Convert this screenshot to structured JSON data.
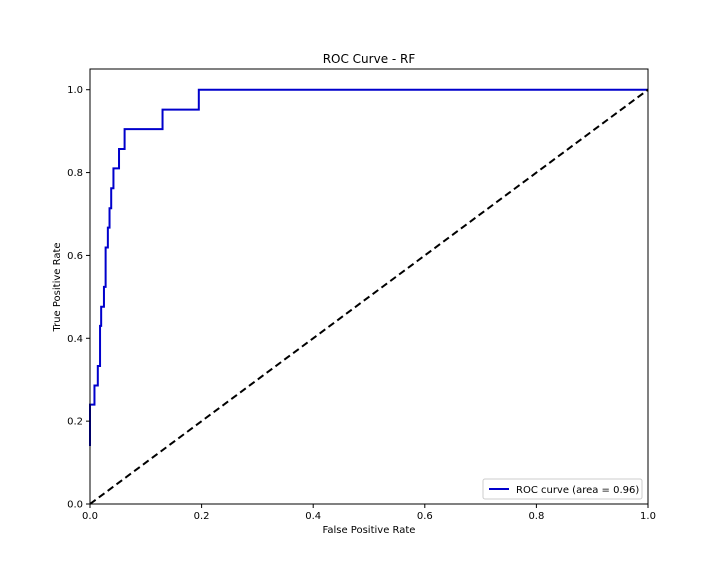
{
  "chart_data": {
    "type": "line",
    "title": "ROC Curve - RF",
    "xlabel": "False Positive Rate",
    "ylabel": "True Positive Rate",
    "xlim": [
      0.0,
      1.0
    ],
    "ylim": [
      0.0,
      1.05
    ],
    "xticks": [
      "0.0",
      "0.2",
      "0.4",
      "0.6",
      "0.8",
      "1.0"
    ],
    "yticks": [
      "0.0",
      "0.2",
      "0.4",
      "0.6",
      "0.8",
      "1.0"
    ],
    "grid": false,
    "legend_position": "lower-right",
    "series": [
      {
        "name": "ROC curve (area = 0.96)",
        "color": "#0000cc",
        "style": "solid",
        "x": [
          0.0,
          0.0,
          0.008,
          0.008,
          0.014,
          0.014,
          0.018,
          0.018,
          0.02,
          0.02,
          0.025,
          0.025,
          0.028,
          0.028,
          0.032,
          0.032,
          0.035,
          0.035,
          0.038,
          0.038,
          0.042,
          0.042,
          0.052,
          0.052,
          0.062,
          0.062,
          0.13,
          0.13,
          0.195,
          0.195,
          1.0
        ],
        "y": [
          0.14,
          0.24,
          0.24,
          0.286,
          0.286,
          0.333,
          0.333,
          0.43,
          0.43,
          0.476,
          0.476,
          0.524,
          0.524,
          0.619,
          0.619,
          0.667,
          0.667,
          0.714,
          0.714,
          0.762,
          0.762,
          0.81,
          0.81,
          0.857,
          0.857,
          0.905,
          0.905,
          0.952,
          0.952,
          1.0,
          1.0
        ]
      },
      {
        "name": "",
        "color": "#000000",
        "style": "dashed",
        "x": [
          0.0,
          1.0
        ],
        "y": [
          0.0,
          1.0
        ]
      }
    ]
  }
}
